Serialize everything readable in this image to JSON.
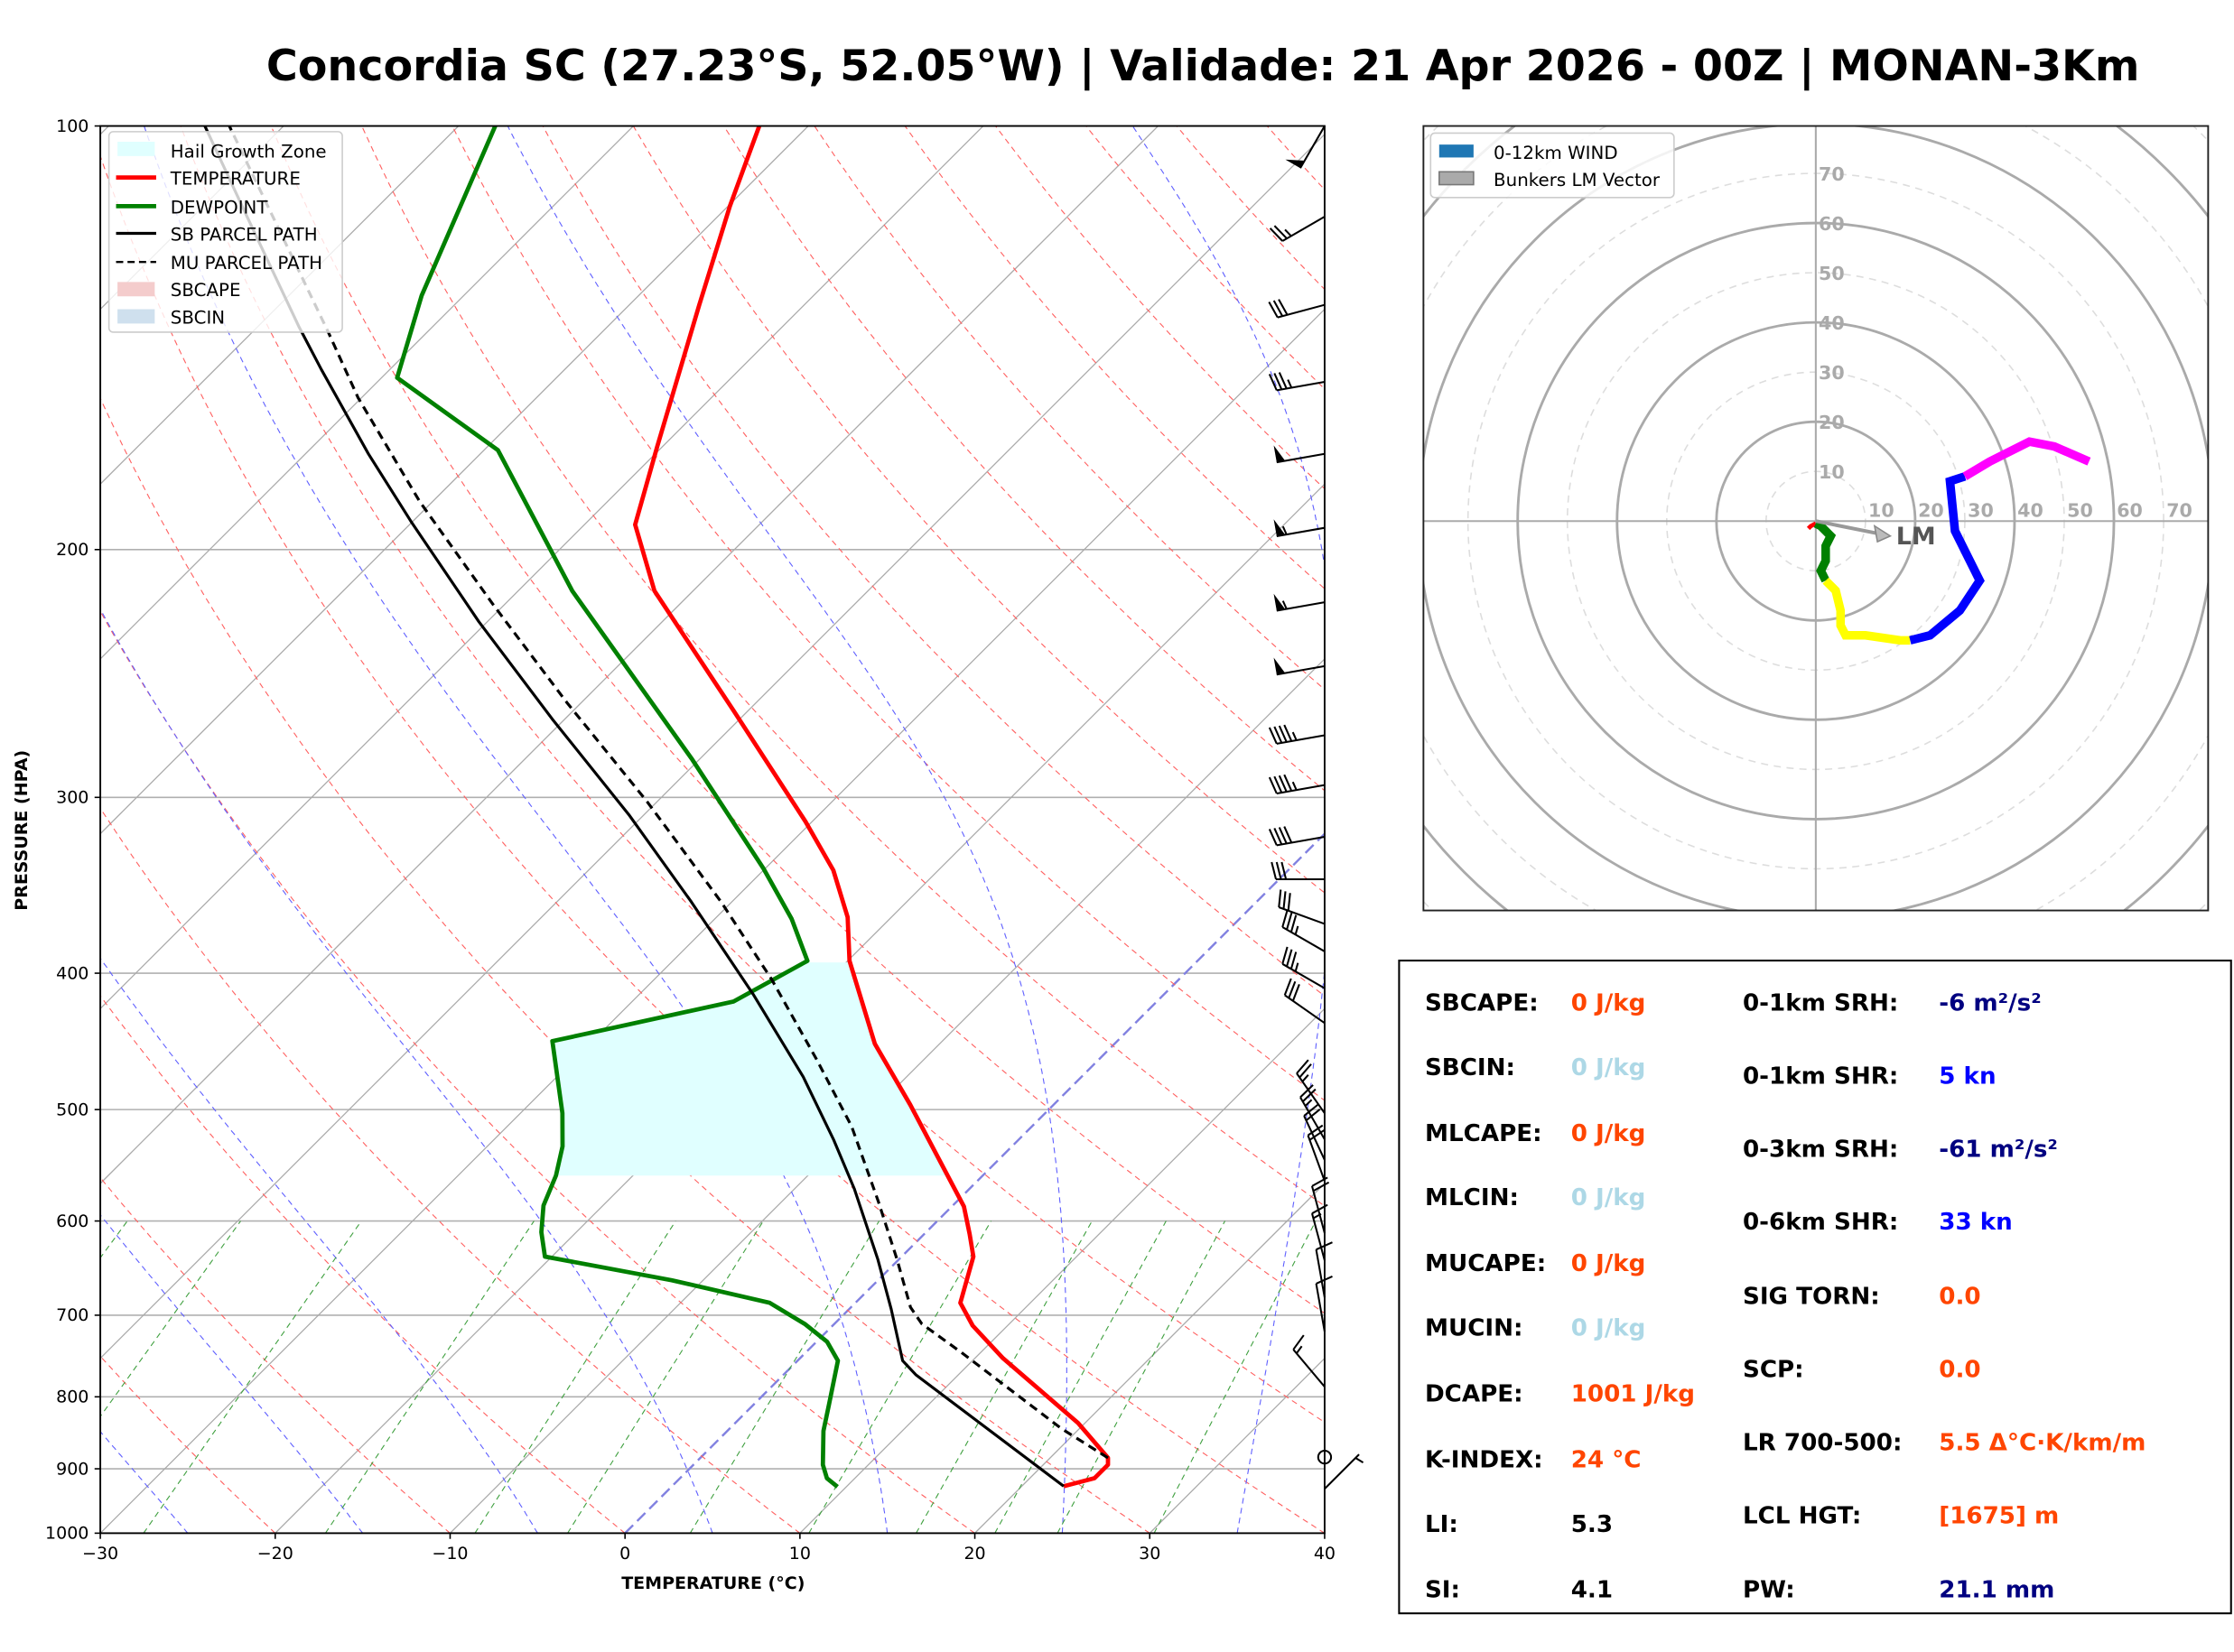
{
  "title": "Concordia SC (27.23°S, 52.05°W) | Validade: 21 Apr 2026 - 00Z | MONAN-3Km",
  "chart_data": [
    {
      "type": "line",
      "subtype": "skew-t log-p",
      "xlabel": "TEMPERATURE (°C)",
      "ylabel": "PRESSURE (HPA)",
      "xlim": [
        -30,
        40
      ],
      "ylim": [
        1000,
        100
      ],
      "yscale": "log",
      "x_ticks": [
        "−30",
        "−20",
        "−10",
        "0",
        "10",
        "20",
        "30",
        "40"
      ],
      "x_tick_values": [
        -30,
        -20,
        -10,
        0,
        10,
        20,
        30,
        40
      ],
      "y_ticks": [
        "100",
        "200",
        "300",
        "400",
        "500",
        "600",
        "700",
        "800",
        "900",
        "1000"
      ],
      "y_tick_values": [
        100,
        200,
        300,
        400,
        500,
        600,
        700,
        800,
        900,
        1000
      ],
      "legend_position": "top-left",
      "legend": [
        {
          "label": "Hail Growth Zone",
          "kind": "patch",
          "color": "#e0ffff"
        },
        {
          "label": "TEMPERATURE",
          "kind": "line",
          "color": "#ff0000"
        },
        {
          "label": "DEWPOINT",
          "kind": "line",
          "color": "#008000"
        },
        {
          "label": "SB PARCEL PATH",
          "kind": "line",
          "color": "#000000"
        },
        {
          "label": "MU PARCEL PATH",
          "kind": "dashed",
          "color": "#000000"
        },
        {
          "label": "SBCAPE",
          "kind": "patch",
          "color": "#f4cccc"
        },
        {
          "label": "SBCIN",
          "kind": "patch",
          "color": "#cfe0ee"
        }
      ],
      "series": [
        {
          "name": "TEMPERATURE",
          "color": "#ff0000",
          "p": [
            926,
            914,
            894,
            884,
            835,
            751,
            712,
            686,
            636,
            613,
            586,
            554,
            496,
            449,
            392,
            365,
            338,
            312,
            260,
            214,
            192,
            169,
            134,
            114,
            100
          ],
          "t": [
            22.4,
            23.7,
            23.7,
            23.3,
            19.6,
            11.6,
            8.0,
            6.0,
            4.1,
            2.6,
            0.7,
            -2.3,
            -8.2,
            -13.7,
            -19.9,
            -22.5,
            -26.0,
            -30.4,
            -40.9,
            -52.2,
            -57.1,
            -60.3,
            -66.0,
            -69.9,
            -72.8
          ]
        },
        {
          "name": "DEWPOINT",
          "color": "#008000",
          "p": [
            927,
            914,
            894,
            846,
            810,
            754,
            731,
            710,
            686,
            661,
            636,
            611,
            585,
            557,
            531,
            503,
            447,
            419,
            392,
            366,
            337,
            282,
            214,
            170,
            151,
            132,
            100
          ],
          "t": [
            9.5,
            8.4,
            7.4,
            5.5,
            4.3,
            2.3,
            0.6,
            -1.7,
            -4.9,
            -11.8,
            -20.4,
            -22.0,
            -23.4,
            -24.4,
            -25.7,
            -27.6,
            -32.3,
            -24.2,
            -22.3,
            -25.6,
            -30.1,
            -40.4,
            -56.9,
            -69.2,
            -79.1,
            -82.4,
            -87.9
          ]
        },
        {
          "name": "SB PARCEL PATH",
          "color": "#000000",
          "p": [
            926,
            772,
            754,
            693,
            639,
            569,
            525,
            474,
            414,
            356,
            309,
            264,
            225,
            191,
            171,
            149,
            139,
            116,
            100
          ],
          "t": [
            22.4,
            7.6,
            6.0,
            2.4,
            -1.2,
            -6.6,
            -10.6,
            -15.9,
            -23.5,
            -32.3,
            -40.8,
            -50.7,
            -60.5,
            -70.1,
            -76.4,
            -83.9,
            -87.6,
            -96.9,
            -104.5
          ]
        },
        {
          "name": "MU PARCEL PATH",
          "color": "#000000",
          "dashed": true,
          "p": [
            884,
            843,
            744,
            710,
            691,
            639,
            581,
            514,
            461,
            404,
            356,
            302,
            257,
            219,
            185,
            156,
            140,
            100
          ],
          "t": [
            23.3,
            19.0,
            8.9,
            5.0,
            3.4,
            -0.1,
            -4.5,
            -10.3,
            -16.1,
            -23.3,
            -30.6,
            -40.6,
            -50.8,
            -60.6,
            -70.7,
            -80.2,
            -85.7,
            -103.1
          ]
        }
      ],
      "hail_growth_zone_hpa": [
        557,
        392
      ],
      "wind_barbs": {
        "units": "kn",
        "p": [
          100,
          116,
          134,
          152,
          171,
          193,
          218,
          242,
          271,
          294,
          320,
          343,
          369,
          386,
          410,
          434,
          503,
          525,
          543,
          562,
          612,
          640,
          680,
          719,
          787,
          883,
          930
        ],
        "dir": [
          210,
          240,
          255,
          260,
          260,
          260,
          260,
          260,
          260,
          260,
          260,
          270,
          290,
          300,
          300,
          305,
          325,
          330,
          335,
          340,
          345,
          345,
          350,
          350,
          320,
          0,
          45
        ],
        "spd": [
          50,
          25,
          30,
          35,
          50,
          55,
          55,
          50,
          45,
          45,
          40,
          30,
          30,
          35,
          35,
          30,
          25,
          25,
          20,
          20,
          20,
          15,
          10,
          10,
          15,
          0,
          5
        ]
      },
      "background_lines": {
        "isotherms": "gray solid",
        "dry_adiabats": "red dashed",
        "moist_adiabats": "blue dashed",
        "mixing_ratio": "green dashed",
        "freezing_isotherm": "purple dashed",
        "grid": true
      }
    },
    {
      "type": "line",
      "subtype": "hodograph",
      "units": "kn",
      "ring_labels": [
        "10",
        "20",
        "30",
        "40",
        "50",
        "60",
        "70"
      ],
      "ring_values": [
        10,
        20,
        30,
        40,
        50,
        60,
        70
      ],
      "legend_position": "top-left",
      "legend": [
        {
          "label": "0-12km WIND",
          "color": "#1f77b4"
        },
        {
          "label": "Bunkers LM Vector",
          "color": "#aaaaaa"
        }
      ],
      "segments": [
        {
          "color": "#ff0000",
          "u": [
            -1.5,
            -1,
            0
          ],
          "v": [
            -1.5,
            -1,
            -0.5
          ]
        },
        {
          "color": "#008000",
          "u": [
            0,
            1,
            3,
            2,
            2,
            1,
            2
          ],
          "v": [
            -0.5,
            -1,
            -3,
            -5,
            -8,
            -10,
            -12
          ]
        },
        {
          "color": "#ffff00",
          "u": [
            2,
            4,
            5,
            5,
            6,
            10,
            17,
            19
          ],
          "v": [
            -12,
            -14,
            -18,
            -21,
            -23,
            -23,
            -24,
            -24
          ]
        },
        {
          "color": "#0000ff",
          "u": [
            19,
            23,
            29,
            33,
            28,
            27,
            30
          ],
          "v": [
            -24,
            -23,
            -18,
            -12,
            -2,
            8,
            9
          ]
        },
        {
          "color": "#ff00ff",
          "u": [
            30,
            35,
            43,
            48,
            55
          ],
          "v": [
            9,
            12,
            16,
            15,
            12
          ]
        }
      ],
      "bunkers_lm": {
        "label": "LM",
        "u": 15,
        "v": -3
      }
    }
  ],
  "stats": {
    "left": [
      {
        "label": "SBCAPE:",
        "value": "0 J/kg",
        "color": "#ff4500"
      },
      {
        "label": "SBCIN:",
        "value": "0 J/kg",
        "color": "#add8e6"
      },
      {
        "label": "MLCAPE:",
        "value": "0 J/kg",
        "color": "#ff4500"
      },
      {
        "label": "MLCIN:",
        "value": "0 J/kg",
        "color": "#add8e6"
      },
      {
        "label": "MUCAPE:",
        "value": "0 J/kg",
        "color": "#ff4500"
      },
      {
        "label": "MUCIN:",
        "value": "0 J/kg",
        "color": "#add8e6"
      },
      {
        "label": "DCAPE:",
        "value": "1001 J/kg",
        "color": "#ff4500"
      },
      {
        "label": "K-INDEX:",
        "value": "24 °C",
        "color": "#ff4500"
      },
      {
        "label": "LI:",
        "value": "5.3",
        "color": "#000000"
      },
      {
        "label": "SI:",
        "value": "4.1",
        "color": "#000000"
      }
    ],
    "right": [
      {
        "label": "0-1km SRH:",
        "value": "-6 m²/s²",
        "color": "#000080"
      },
      {
        "label": "0-1km SHR:",
        "value": "5 kn",
        "color": "#0000ff"
      },
      {
        "label": "0-3km SRH:",
        "value": "-61 m²/s²",
        "color": "#000080"
      },
      {
        "label": "0-6km SHR:",
        "value": "33 kn",
        "color": "#0000ff"
      },
      {
        "label": "SIG TORN:",
        "value": "0.0",
        "color": "#ff4500"
      },
      {
        "label": "SCP:",
        "value": "0.0",
        "color": "#ff4500"
      },
      {
        "label": "LR 700-500:",
        "value": "5.5 Δ°C·K/km/m",
        "color": "#ff4500"
      },
      {
        "label": "LCL HGT:",
        "value": "[1675] m",
        "color": "#ff4500"
      },
      {
        "label": "PW:",
        "value": "21.1 mm",
        "color": "#000080"
      }
    ]
  }
}
